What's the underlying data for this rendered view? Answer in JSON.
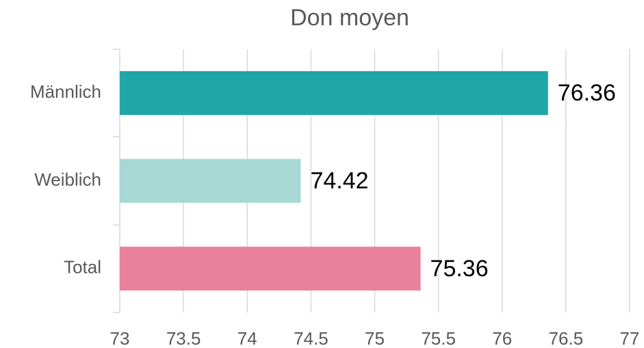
{
  "chart_data": {
    "type": "bar",
    "orientation": "horizontal",
    "title": "Don moyen",
    "categories": [
      "Männlich",
      "Weiblich",
      "Total"
    ],
    "values": [
      76.36,
      74.42,
      75.36
    ],
    "colors": [
      "#20a6a6",
      "#a6d8d4",
      "#e8829c"
    ],
    "xlim": [
      73,
      77
    ],
    "xticks": [
      73,
      73.5,
      74,
      74.5,
      75,
      75.5,
      76,
      76.5,
      77
    ],
    "grid": true
  }
}
